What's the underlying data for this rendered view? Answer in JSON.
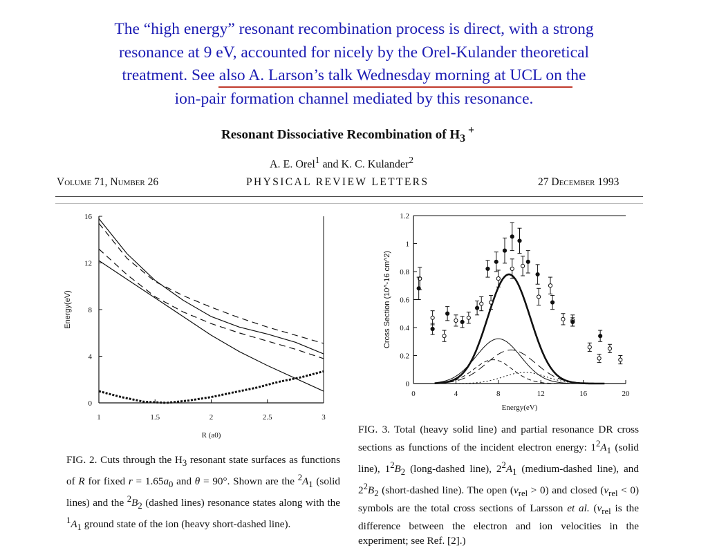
{
  "intro": {
    "line1": "The “high energy” resonant recombination process is direct, with a strong",
    "line2": "resonance at 9 eV, accounted for nicely by the Orel-Kulander theoretical",
    "line3a": "treatment.  See also ",
    "line3_link": "A. Larson’s talk Wednesday morning at UCL",
    "line3b": " on the",
    "line4": "ion-pair formation channel mediated by this resonance."
  },
  "paper": {
    "title": "Resonant Dissociative Recombination of H",
    "title_sub": "3",
    "title_sup": " +",
    "author1": "A. E. Orel",
    "author1_sup": "1",
    "and": " and ",
    "author2": "K. C. Kulander",
    "author2_sup": "2",
    "volume": "Volume 71, Number 26",
    "journal": "PHYSICAL REVIEW LETTERS",
    "date": "27 December 1993"
  },
  "fig2": {
    "caption": {
      "a": "FIG. 2.  Cuts through the H",
      "a_sub": "3",
      "b": " resonant state surfaces as functions of ",
      "b_it": "R",
      "c": " for fixed ",
      "c_it": "r",
      "d": " = 1.65",
      "d_it": "a",
      "d_sub": "0",
      "e": " and ",
      "e_it": "θ",
      "f": " = 90°.  Shown are the ",
      "f_sup": "2",
      "f_it": "A",
      "f_sub": "1",
      "g": " (solid lines) and the ",
      "g_sup": "2",
      "g_it": "B",
      "g_sub": "2",
      "h": " (dashed lines) resonance states along with the ",
      "h_sup": "1",
      "h_it": "A",
      "h_sub": "1",
      "i": " ground state of the ion (heavy short-dashed line)."
    },
    "chart_data": {
      "type": "line",
      "xlabel": "R (a0)",
      "ylabel": "Energy(eV)",
      "xlim": [
        1,
        3
      ],
      "ylim": [
        0,
        16
      ],
      "xticks": [
        "1",
        "1.5",
        "2",
        "2.5",
        "3"
      ],
      "yticks": [
        "0",
        "4",
        "8",
        "12",
        "16"
      ],
      "series": [
        {
          "style": "solid",
          "x": [
            1,
            1.25,
            1.5,
            1.75,
            2,
            2.25,
            2.5,
            2.75,
            3
          ],
          "y": [
            15.8,
            12.8,
            10.5,
            8.8,
            7.4,
            6.5,
            5.9,
            5.2,
            4.2
          ]
        },
        {
          "style": "solid",
          "x": [
            1,
            1.25,
            1.5,
            1.75,
            2,
            2.25,
            2.5,
            2.75,
            3
          ],
          "y": [
            12.2,
            10.6,
            9.0,
            7.4,
            5.8,
            4.4,
            3.2,
            2.1,
            1.0
          ]
        },
        {
          "style": "dashed",
          "x": [
            1,
            1.25,
            1.5,
            1.75,
            2,
            2.25,
            2.5,
            2.75,
            3
          ],
          "y": [
            15.4,
            12.4,
            10.4,
            9.2,
            8.2,
            7.3,
            6.5,
            5.8,
            5.1
          ]
        },
        {
          "style": "dashed",
          "x": [
            1,
            1.25,
            1.5,
            1.75,
            2,
            2.25,
            2.5,
            2.75,
            3
          ],
          "y": [
            13.2,
            11.0,
            9.1,
            7.8,
            6.8,
            6.0,
            5.3,
            4.6,
            3.8
          ]
        },
        {
          "style": "heavy-dotted",
          "x": [
            1,
            1.2,
            1.4,
            1.6,
            1.8,
            2,
            2.2,
            2.4,
            2.6,
            2.8,
            3
          ],
          "y": [
            1.0,
            0.5,
            0.1,
            0.0,
            0.2,
            0.5,
            0.9,
            1.3,
            1.8,
            2.2,
            2.7
          ]
        }
      ]
    }
  },
  "fig3": {
    "caption": {
      "a": "FIG. 3.  Total (heavy solid line) and partial resonance DR cross sections as functions of the incident electron energy: 1",
      "a_sup": "2",
      "a_it": "A",
      "a_sub": "1",
      "b": " (solid line), 1",
      "b_sup": "2",
      "b_it": "B",
      "b_sub": "2",
      "c": " (long-dashed line), 2",
      "c_sup": "2",
      "c_it": "A",
      "c_sub": "1",
      "d": " (medium-dashed line), and 2",
      "d_sup": "2",
      "d_it": "B",
      "d_sub": "2",
      "e": " (short-dashed line).  The open (",
      "e_it": "v",
      "e_sub": "rel",
      "f": " > 0) and closed (",
      "f_it": "v",
      "f_sub": "rel",
      "g": " < 0) symbols are the total cross sections of Larsson ",
      "g_it": "et al.",
      "h": " (",
      "h_it": "v",
      "h_sub": "rel",
      "i": " is the difference between the electron and ion velocities in the experiment; see Ref. [2].)"
    },
    "chart_data": {
      "type": "line",
      "xlabel": "Energy(eV)",
      "ylabel": "Cross Section (10^-16 cm^2)",
      "xlim": [
        0,
        20
      ],
      "ylim": [
        0,
        1.2
      ],
      "xticks": [
        "0",
        "4",
        "8",
        "12",
        "16",
        "20"
      ],
      "yticks": [
        "0",
        "0.2",
        "0.4",
        "0.6",
        "0.8",
        "1",
        "1.2"
      ],
      "curves": [
        {
          "style": "heavy-solid",
          "center": 9.0,
          "width": 2.0,
          "peak": 0.78
        },
        {
          "style": "solid",
          "center": 8.0,
          "width": 2.1,
          "peak": 0.32
        },
        {
          "style": "long-dashed",
          "center": 9.2,
          "width": 2.3,
          "peak": 0.24
        },
        {
          "style": "medium-dashed",
          "center": 7.5,
          "width": 1.8,
          "peak": 0.17
        },
        {
          "style": "short-dashed",
          "center": 10.5,
          "width": 2.0,
          "peak": 0.08
        }
      ],
      "closed_points": [
        {
          "x": 0.5,
          "y": 0.68,
          "err": 0.08
        },
        {
          "x": 1.8,
          "y": 0.39,
          "err": 0.04
        },
        {
          "x": 3.2,
          "y": 0.5,
          "err": 0.05
        },
        {
          "x": 4.6,
          "y": 0.44,
          "err": 0.04
        },
        {
          "x": 6.0,
          "y": 0.54,
          "err": 0.05
        },
        {
          "x": 7.0,
          "y": 0.82,
          "err": 0.06
        },
        {
          "x": 7.8,
          "y": 0.87,
          "err": 0.07
        },
        {
          "x": 8.6,
          "y": 0.95,
          "err": 0.09
        },
        {
          "x": 9.3,
          "y": 1.05,
          "err": 0.1
        },
        {
          "x": 10.0,
          "y": 1.02,
          "err": 0.09
        },
        {
          "x": 10.8,
          "y": 0.87,
          "err": 0.08
        },
        {
          "x": 11.7,
          "y": 0.78,
          "err": 0.07
        },
        {
          "x": 13.1,
          "y": 0.58,
          "err": 0.05
        },
        {
          "x": 15.0,
          "y": 0.44,
          "err": 0.03
        },
        {
          "x": 17.6,
          "y": 0.34,
          "err": 0.04
        }
      ],
      "open_points": [
        {
          "x": 0.6,
          "y": 0.75,
          "err": 0.08
        },
        {
          "x": 1.8,
          "y": 0.47,
          "err": 0.05
        },
        {
          "x": 2.9,
          "y": 0.34,
          "err": 0.04
        },
        {
          "x": 4.0,
          "y": 0.45,
          "err": 0.04
        },
        {
          "x": 5.2,
          "y": 0.47,
          "err": 0.04
        },
        {
          "x": 6.4,
          "y": 0.57,
          "err": 0.05
        },
        {
          "x": 7.3,
          "y": 0.58,
          "err": 0.05
        },
        {
          "x": 8.0,
          "y": 0.75,
          "err": 0.06
        },
        {
          "x": 9.3,
          "y": 0.82,
          "err": 0.07
        },
        {
          "x": 10.3,
          "y": 0.84,
          "err": 0.07
        },
        {
          "x": 11.8,
          "y": 0.62,
          "err": 0.06
        },
        {
          "x": 12.9,
          "y": 0.7,
          "err": 0.06
        },
        {
          "x": 14.1,
          "y": 0.46,
          "err": 0.04
        },
        {
          "x": 15.0,
          "y": 0.45,
          "err": 0.04
        },
        {
          "x": 16.6,
          "y": 0.26,
          "err": 0.03
        },
        {
          "x": 17.5,
          "y": 0.18,
          "err": 0.03
        },
        {
          "x": 18.5,
          "y": 0.25,
          "err": 0.03
        },
        {
          "x": 19.5,
          "y": 0.17,
          "err": 0.03
        }
      ]
    }
  }
}
